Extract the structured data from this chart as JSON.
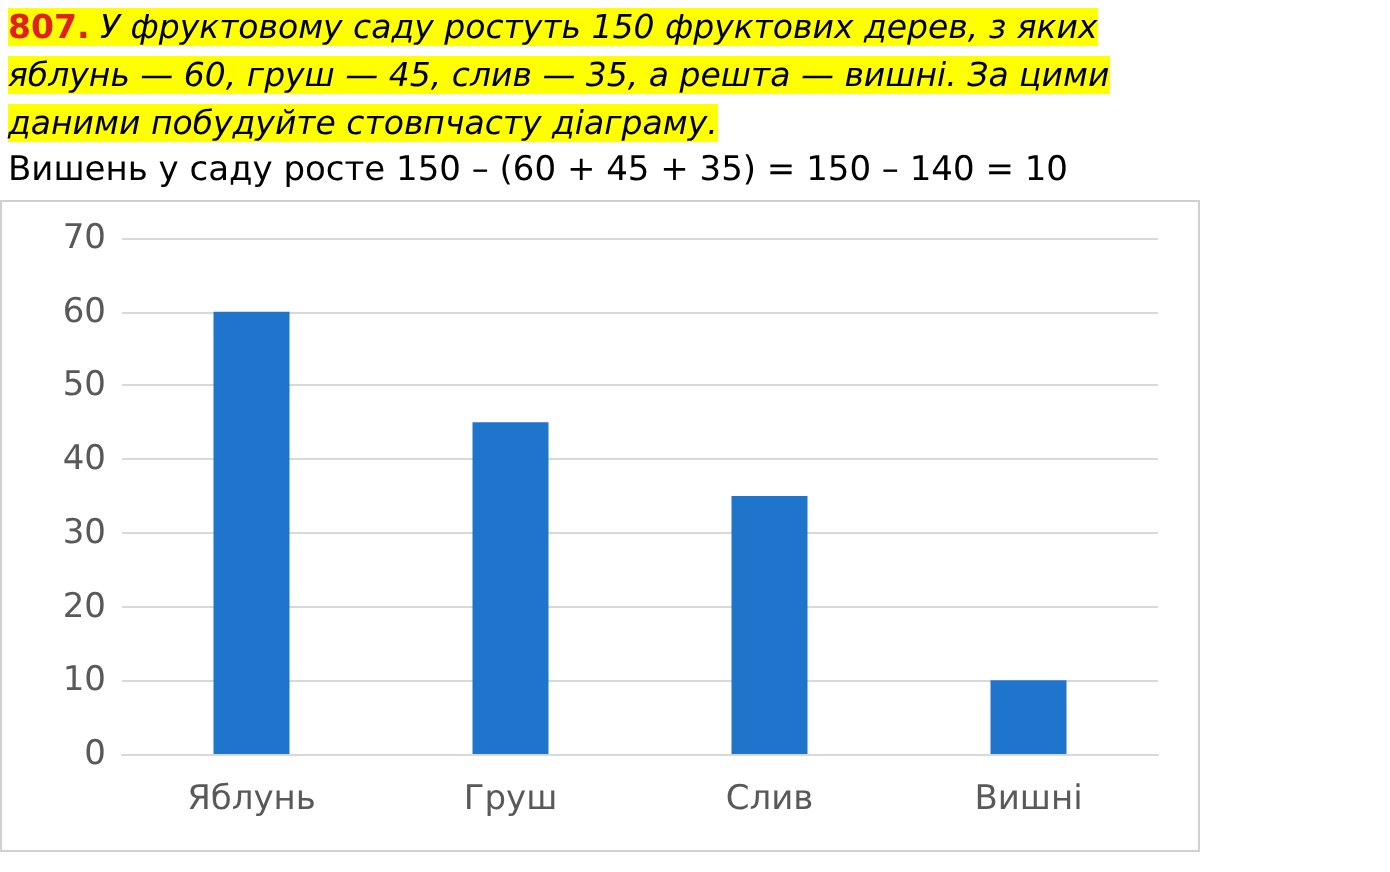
{
  "chart_data": {
    "type": "bar",
    "title": "807. У фруктовому саду ростуть 150 фруктових дерев, з яких яблунь — 60, груш — 45, слив — 35, а решта — вишні. За цими даними побудуйте стовпчасту діаграму.",
    "subtitle": "Вишень у саду росте 150 – (60 + 45 + 35) = 150 – 140 = 10",
    "categories": [
      "Яблунь",
      "Груш",
      "Слив",
      "Вишні"
    ],
    "values": [
      60,
      45,
      35,
      10
    ],
    "color": "#1f74cc",
    "ylim": [
      0,
      70
    ],
    "yticks": [
      0,
      10,
      20,
      30,
      40,
      50,
      60,
      70
    ],
    "grid": "y"
  }
}
